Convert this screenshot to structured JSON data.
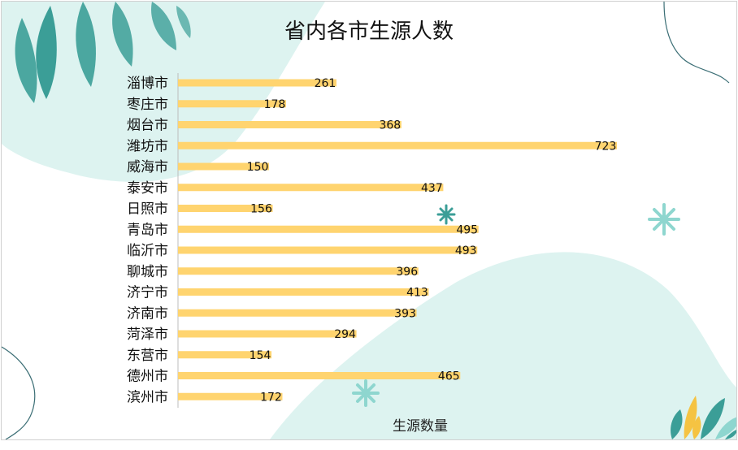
{
  "colors": {
    "bar": "#FFD46F",
    "leaf": "#3B9E97",
    "leaf_light": "#8ED6CF",
    "blob": "#DDF3F0",
    "accent_yellow": "#F5C342"
  },
  "chart_data": {
    "type": "bar",
    "orientation": "horizontal",
    "title": "省内各市生源人数",
    "xlabel": "生源数量",
    "ylabel": "",
    "categories": [
      "淄博市",
      "枣庄市",
      "烟台市",
      "潍坊市",
      "威海市",
      "泰安市",
      "日照市",
      "青岛市",
      "临沂市",
      "聊城市",
      "济宁市",
      "济南市",
      "菏泽市",
      "东营市",
      "德州市",
      "滨州市"
    ],
    "values": [
      261,
      178,
      368,
      723,
      150,
      437,
      156,
      495,
      493,
      396,
      413,
      393,
      294,
      154,
      465,
      172
    ],
    "xlim": [
      0,
      800
    ],
    "grid": false,
    "legend": "none",
    "data_labels": true
  }
}
